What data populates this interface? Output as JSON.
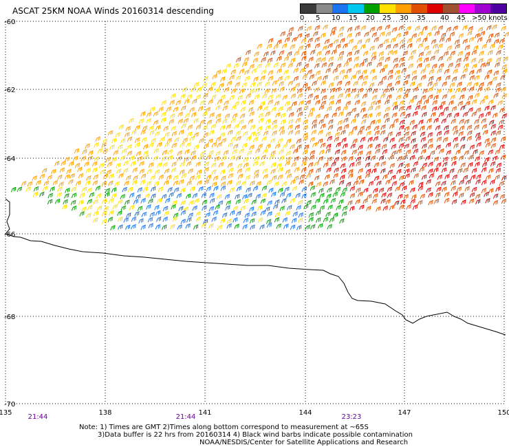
{
  "title": "ASCAT 25KM NOAA Winds 20160314 descending",
  "legend": {
    "colors": [
      "#3a3a3a",
      "#8a8a8a",
      "#1a73f0",
      "#00c8f0",
      "#00a000",
      "#ffe000",
      "#ffa000",
      "#e05000",
      "#e00000",
      "#a05030",
      "#ff00ff",
      "#a000d0",
      "#5000a0"
    ],
    "labels": [
      "0",
      "5",
      "10",
      "15",
      "20",
      "25",
      "30",
      "35",
      "40",
      "45",
      ">50 knots"
    ]
  },
  "axes": {
    "lat_labels": [
      "-60",
      "-62",
      "-64",
      "-66",
      "-68",
      "-70"
    ],
    "lon_labels": [
      "135",
      "138",
      "141",
      "144",
      "147",
      "150"
    ],
    "time_labels": [
      "21:44",
      "21:44",
      "23:23"
    ]
  },
  "notes": {
    "line1": "Note: 1) Times are GMT 2)Times along bottom correspond to measurement at ~65S",
    "line2": "3)Data buffer is 22 hrs from 20160314 4) Black wind barbs indicate possible contamination",
    "line3": "NOAA/NESDIS/Center for Satellite Applications and Research"
  }
}
